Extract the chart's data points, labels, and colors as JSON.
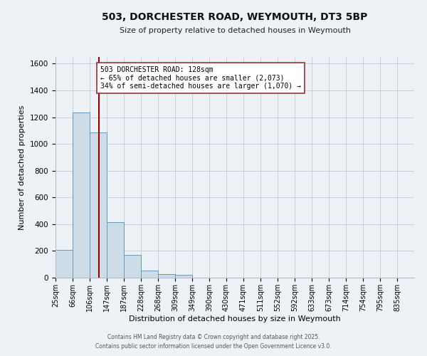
{
  "title": "503, DORCHESTER ROAD, WEYMOUTH, DT3 5BP",
  "subtitle": "Size of property relative to detached houses in Weymouth",
  "xlabel": "Distribution of detached houses by size in Weymouth",
  "ylabel": "Number of detached properties",
  "bin_labels": [
    "25sqm",
    "66sqm",
    "106sqm",
    "147sqm",
    "187sqm",
    "228sqm",
    "268sqm",
    "309sqm",
    "349sqm",
    "390sqm",
    "430sqm",
    "471sqm",
    "511sqm",
    "552sqm",
    "592sqm",
    "633sqm",
    "673sqm",
    "714sqm",
    "754sqm",
    "795sqm",
    "835sqm"
  ],
  "bar_values": [
    205,
    1235,
    1085,
    415,
    170,
    52,
    25,
    20,
    0,
    0,
    0,
    0,
    0,
    0,
    0,
    0,
    0,
    0,
    0,
    0,
    0
  ],
  "bar_color": "#ccdde8",
  "bar_edge_color": "#6699bb",
  "vline_color": "#990000",
  "annotation_line1": "503 DORCHESTER ROAD: 128sqm",
  "annotation_line2": "← 65% of detached houses are smaller (2,073)",
  "annotation_line3": "34% of semi-detached houses are larger (1,070) →",
  "annotation_box_facecolor": "#ffffff",
  "annotation_box_edgecolor": "#993333",
  "ylim": [
    0,
    1650
  ],
  "yticks": [
    0,
    200,
    400,
    600,
    800,
    1000,
    1200,
    1400,
    1600
  ],
  "bg_color": "#edf2f7",
  "grid_color": "#c8cedd",
  "footer1": "Contains HM Land Registry data © Crown copyright and database right 2025.",
  "footer2": "Contains public sector information licensed under the Open Government Licence v3.0."
}
